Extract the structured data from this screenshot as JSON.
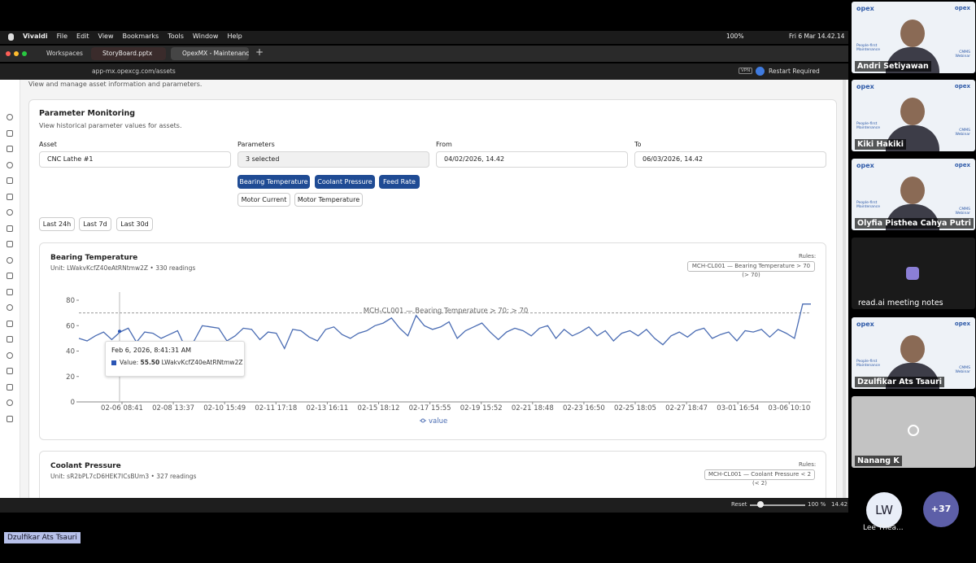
{
  "menubar": {
    "app": "Vivaldi",
    "menus": [
      "File",
      "Edit",
      "View",
      "Bookmarks",
      "Tools",
      "Window",
      "Help"
    ],
    "battery": "100%",
    "clock": "Fri 6 Mar 14.42.14"
  },
  "tabs": {
    "workspaces": "Workspaces",
    "items": [
      "StoryBoard.pptx",
      "OpexMX - Maintenance e"
    ]
  },
  "address": {
    "url": "app-mx.opexcg.com/assets",
    "vpn": "VPN",
    "notice": "Restart Required"
  },
  "page": {
    "subtitle": "View and manage asset information and parameters."
  },
  "monitoring": {
    "title": "Parameter Monitoring",
    "description": "View historical parameter values for assets.",
    "asset_label": "Asset",
    "asset_value": "CNC Lathe #1",
    "parameters_label": "Parameters",
    "parameters_value": "3 selected",
    "from_label": "From",
    "from_value": "04/02/2026, 14.42",
    "to_label": "To",
    "to_value": "06/03/2026, 14.42",
    "selected": [
      "Bearing Temperature",
      "Coolant Pressure",
      "Feed Rate"
    ],
    "unselected": [
      "Motor Current",
      "Motor Temperature"
    ],
    "ranges": [
      "Last 24h",
      "Last 7d",
      "Last 30d"
    ]
  },
  "bearing_card": {
    "title": "Bearing Temperature",
    "unit": "Unit: LWakvKcfZ40eAtRNtmw2Z • 330 readings",
    "rules_label": "Rules:",
    "rule_badge": "MCH-CL001 — Bearing Temperature > 70 (> 70)"
  },
  "chart_data": {
    "type": "line",
    "ylim": [
      0,
      80
    ],
    "yticks": [
      0,
      20,
      40,
      60,
      80
    ],
    "grid": false,
    "xtick_labels": [
      "02-06 08:41",
      "02-08 13:37",
      "02-10 15:49",
      "02-11 17:18",
      "02-13 16:11",
      "02-15 18:12",
      "02-17 15:55",
      "02-19 15:52",
      "02-21 18:48",
      "02-23 16:50",
      "02-25 18:05",
      "02-27 18:47",
      "03-01 16:54",
      "03-06 10:10"
    ],
    "threshold": {
      "value": 70,
      "label": "MCH-CL001 — Bearing Temperature > 70: > 70"
    },
    "series": [
      {
        "name": "value",
        "color": "#4a6cb3",
        "values": [
          50,
          48,
          52,
          55,
          49,
          55,
          58,
          47,
          55,
          54,
          50,
          53,
          56,
          42,
          48,
          60,
          59,
          58,
          48,
          52,
          58,
          57,
          49,
          55,
          54,
          42,
          57,
          56,
          51,
          48,
          57,
          59,
          53,
          50,
          54,
          56,
          60,
          62,
          66,
          58,
          52,
          68,
          60,
          57,
          59,
          63,
          50,
          56,
          59,
          62,
          55,
          49,
          55,
          58,
          56,
          52,
          58,
          60,
          50,
          57,
          52,
          55,
          59,
          52,
          56,
          48,
          54,
          56,
          52,
          57,
          50,
          45,
          52,
          55,
          51,
          56,
          58,
          50,
          53,
          55,
          48,
          56,
          55,
          57,
          51,
          57,
          54,
          50,
          77,
          77
        ]
      }
    ],
    "tooltip": {
      "date": "Feb 6, 2026, 8:41:31 AM",
      "label": "Value:",
      "value": 55.5,
      "value_label": "55.50",
      "unit": "LWakvKcfZ40eAtRNtmw2Z"
    }
  },
  "coolant_card": {
    "title": "Coolant Pressure",
    "unit": "Unit: sR2bPL7cD6HEK7ICsBUm3 • 327 readings",
    "rules_label": "Rules:",
    "rule_badge": "MCH-CL001 — Coolant Pressure < 2 (< 2)"
  },
  "statusbar": {
    "reset": "Reset",
    "zoom": "100 %",
    "time": "14.42"
  },
  "call": {
    "brand": "opex",
    "tagline": "People-first Maintenance",
    "event": "CMMS Webinar",
    "participants": [
      "Andri Setiyawan",
      "Kiki Hakiki",
      "Olyfia Pisthea Cahya Putri",
      "read.ai meeting notes",
      "Dzulfikar Ats Tsauri",
      "Nanang K"
    ],
    "initials": "LW",
    "guest": "Lee Thea...",
    "more": "+37",
    "speaker": "Dzulfikar Ats Tsauri"
  }
}
